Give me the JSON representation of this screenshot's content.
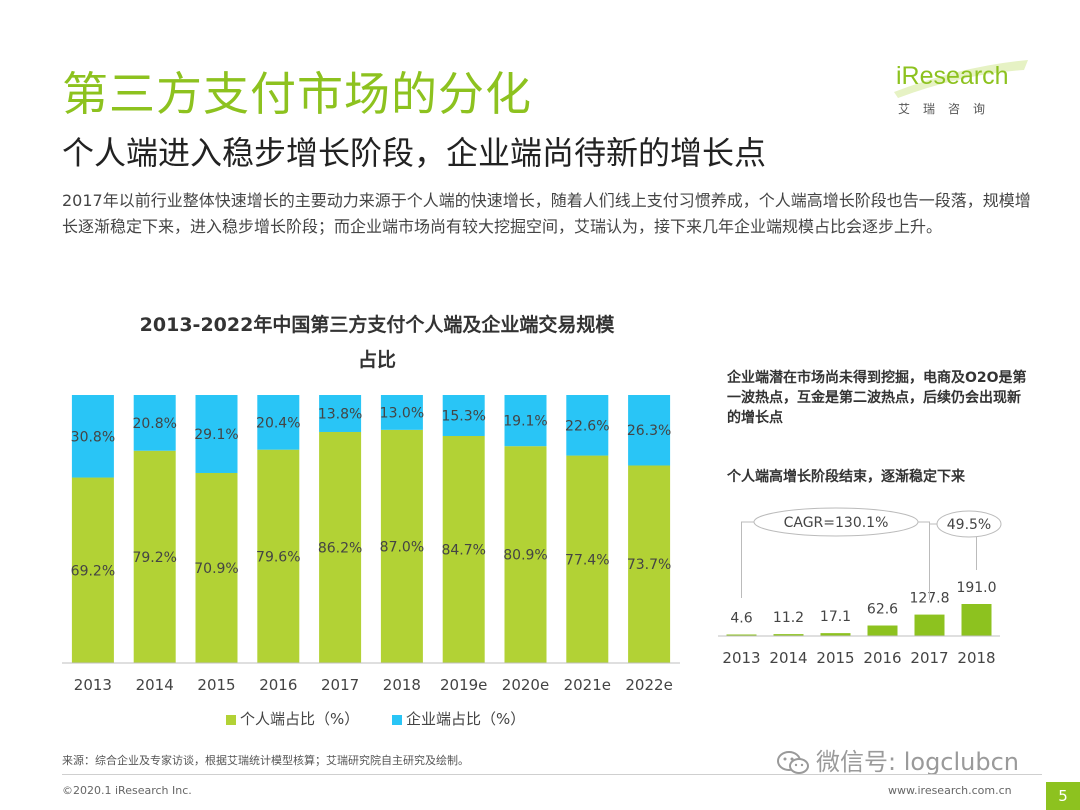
{
  "header": {
    "title": "第三方支付市场的分化",
    "subtitle": "个人端进入稳步增长阶段，企业端尚待新的增长点",
    "intro": "2017年以前行业整体快速增长的主要动力来源于个人端的快速增长，随着人们线上支付习惯养成，个人端高增长阶段也告一段落，规模增长逐渐稳定下来，进入稳步增长阶段；而企业端市场尚有较大挖掘空间，艾瑞认为，接下来几年企业端规模占比会逐步上升。"
  },
  "logo": {
    "wordmark": "iResearch",
    "tagline": "艾瑞咨询"
  },
  "chart_data": [
    {
      "type": "bar",
      "stacked": true,
      "title_line1": "2013-2022年中国第三方支付个人端及企业端交易规模",
      "title_line2": "占比",
      "categories": [
        "2013",
        "2014",
        "2015",
        "2016",
        "2017",
        "2018",
        "2019e",
        "2020e",
        "2021e",
        "2022e"
      ],
      "series": [
        {
          "name": "个人端占比（%）",
          "color": "#b2d235",
          "values": [
            69.2,
            79.2,
            70.9,
            79.6,
            86.2,
            87.0,
            84.7,
            80.9,
            77.4,
            73.7
          ],
          "labels": [
            "69.2%",
            "79.2%",
            "70.9%",
            "79.6%",
            "86.2%",
            "87.0%",
            "84.7%",
            "80.9%",
            "77.4%",
            "73.7%"
          ]
        },
        {
          "name": "企业端占比（%）",
          "color": "#29c5f6",
          "values": [
            30.8,
            20.8,
            29.1,
            20.4,
            13.8,
            13.0,
            15.3,
            19.1,
            22.6,
            26.3
          ],
          "labels": [
            "30.8%",
            "20.8%",
            "29.1%",
            "20.4%",
            "13.8%",
            "13.0%",
            "15.3%",
            "19.1%",
            "22.6%",
            "26.3%"
          ]
        }
      ],
      "ylim": [
        0,
        100
      ],
      "legend_position": "bottom",
      "grid": false
    },
    {
      "type": "bar",
      "categories": [
        "2013",
        "2014",
        "2015",
        "2016",
        "2017",
        "2018"
      ],
      "values": [
        4.6,
        11.2,
        17.1,
        62.6,
        127.8,
        191.0
      ],
      "labels": [
        "4.6",
        "11.2",
        "17.1",
        "62.6",
        "127.8",
        "191.0"
      ],
      "color": "#8dc21f",
      "annotations": [
        "CAGR=130.1%",
        "49.5%"
      ],
      "grid": false
    }
  ],
  "notes": {
    "note1": "企业端潜在市场尚未得到挖掘，电商及O2O是第一波热点，互金是第二波热点，后续仍会出现新的增长点",
    "note2": "个人端高增长阶段结束，逐渐稳定下来"
  },
  "footer": {
    "source": "来源：综合企业及专家访谈，根据艾瑞统计模型核算；艾瑞研究院自主研究及绘制。",
    "copyright": "©2020.1 iResearch Inc.",
    "website": "www.iresearch.com.cn",
    "page": "5",
    "watermark": "微信号: logclubcn"
  }
}
